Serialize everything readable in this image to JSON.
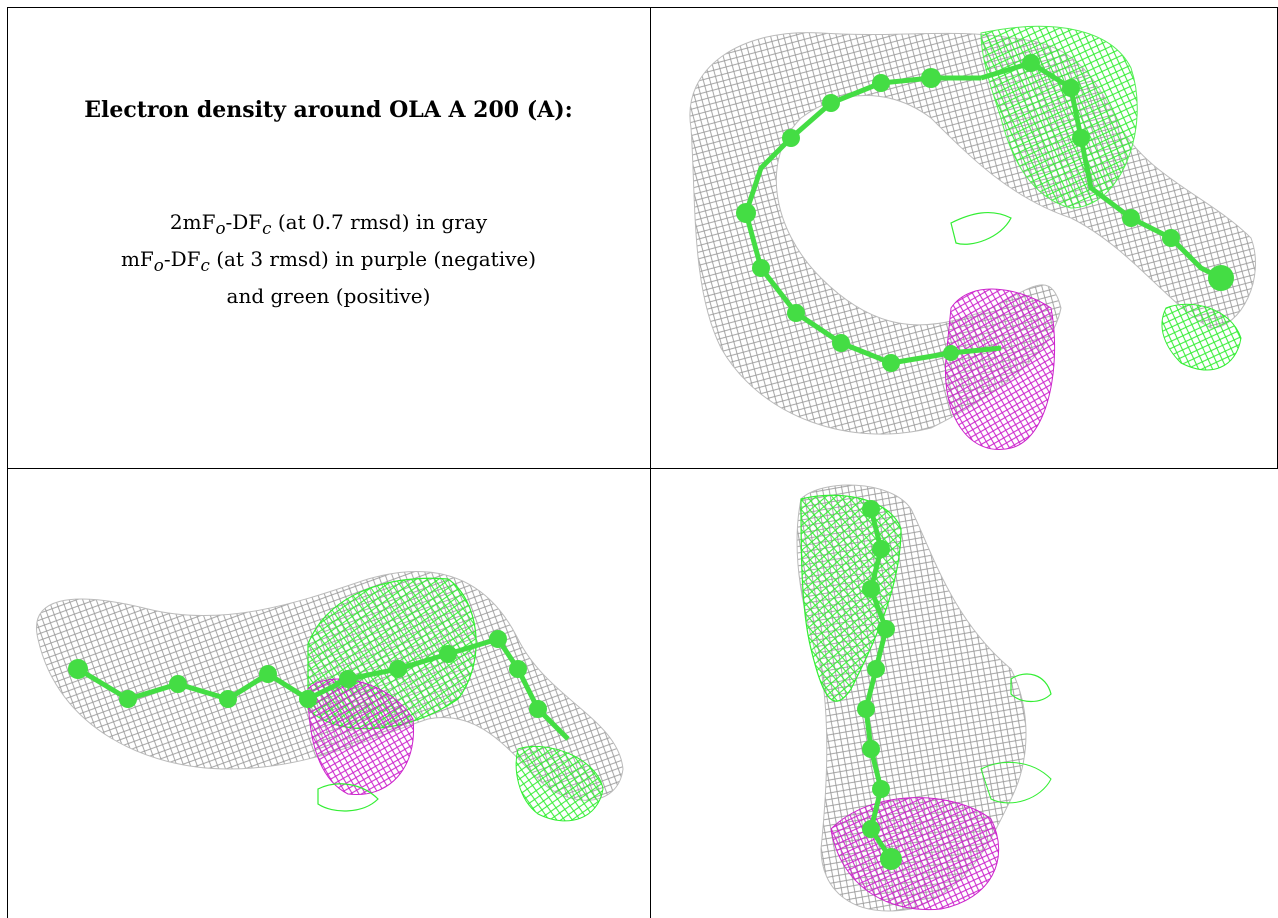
{
  "caption": {
    "heading": "Electron density around OLA A 200 (A):",
    "line1": {
      "prefix": "2mF",
      "sub1": "o",
      "mid": "-DF",
      "sub2": "c",
      "suffix": " (at 0.7 rmsd) in gray"
    },
    "line2": {
      "prefix": "mF",
      "sub1": "o",
      "mid": "-DF",
      "sub2": "c",
      "suffix": " (at 3 rmsd) in purple (negative)"
    },
    "line3": "and green (positive)"
  },
  "colors": {
    "mesh_gray": "#9a9a9a",
    "positive_green": "#33ee33",
    "negative_purple": "#cc22cc",
    "atom_green": "#44dd44"
  },
  "panels": [
    {
      "name": "view-top-right",
      "description_icon": "density-map-view-1"
    },
    {
      "name": "view-bottom-left",
      "description_icon": "density-map-view-2"
    },
    {
      "name": "view-bottom-right",
      "description_icon": "density-map-view-3"
    }
  ]
}
